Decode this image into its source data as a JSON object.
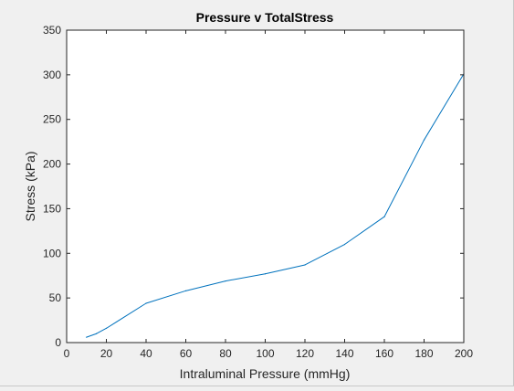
{
  "chart_data": {
    "type": "line",
    "title": "Pressure v TotalStress",
    "xlabel": "Intraluminal Pressure (mmHg)",
    "ylabel": "Stress (kPa)",
    "xlim": [
      0,
      200
    ],
    "ylim": [
      0,
      350
    ],
    "xticks": [
      0,
      20,
      40,
      60,
      80,
      100,
      120,
      140,
      160,
      180,
      200
    ],
    "yticks": [
      0,
      50,
      100,
      150,
      200,
      250,
      300,
      350
    ],
    "grid": false,
    "series": [
      {
        "color": "#0072bd",
        "x": [
          10,
          15,
          20,
          40,
          60,
          80,
          100,
          120,
          140,
          160,
          180,
          200
        ],
        "y": [
          6,
          10,
          16,
          44,
          58,
          69,
          77,
          87,
          110,
          141,
          227,
          301
        ]
      }
    ]
  }
}
